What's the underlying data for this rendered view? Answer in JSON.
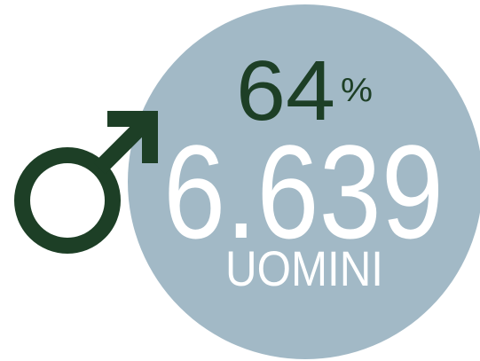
{
  "share": {
    "number": "64",
    "unit": "%"
  },
  "count": "6.639",
  "label": "UOMINI"
}
